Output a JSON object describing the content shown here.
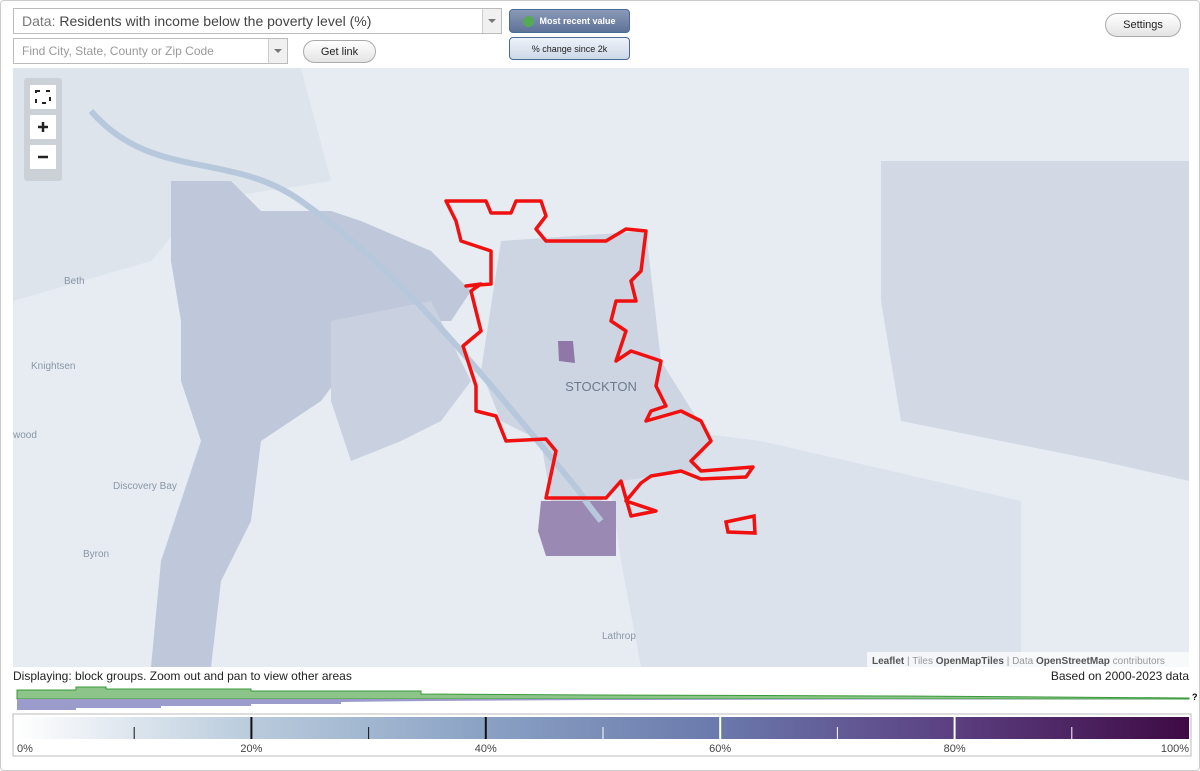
{
  "toolbar": {
    "data_label": "Data:",
    "data_value": "Residents with income below the poverty level (%)",
    "search_placeholder": "Find City, State, County or Zip Code",
    "get_link": "Get link",
    "buttons": [
      "Most recent value",
      "% change since 2k"
    ],
    "settings": "Settings"
  },
  "map": {
    "place_labels": [
      "Beth",
      "Knightsen",
      "wood",
      "Discovery Bay",
      "Byron",
      "Lathrop"
    ],
    "city_label": "STOCKTON",
    "attribution": {
      "leaflet": "Leaflet",
      "tiles_prefix": "| Tiles",
      "tiles": "OpenMapTiles",
      "data_prefix": "| Data",
      "data": "OpenStreetMap",
      "suffix": "contributors"
    }
  },
  "status": {
    "displaying": "Displaying: block groups. Zoom out and pan to view other areas",
    "based_on": "Based on 2000-2023 data"
  },
  "legend": {
    "ticks": [
      {
        "value": 0,
        "label": "0%"
      },
      {
        "value": 20,
        "label": "20%"
      },
      {
        "value": 40,
        "label": "40%"
      },
      {
        "value": 60,
        "label": "60%"
      },
      {
        "value": 80,
        "label": "80%"
      },
      {
        "value": 100,
        "label": "100%"
      }
    ],
    "minor_ticks": [
      10,
      30,
      50,
      70,
      90
    ],
    "help": "?"
  }
}
